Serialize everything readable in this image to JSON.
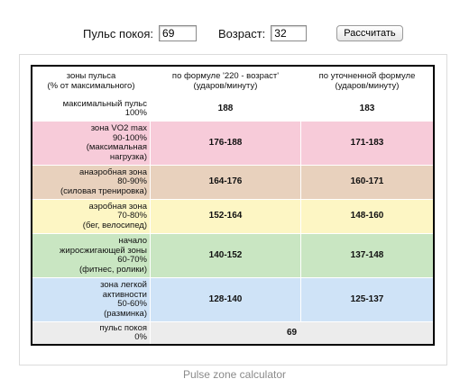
{
  "form": {
    "pulse_label": "Пульс покоя:",
    "pulse_value": "69",
    "age_label": "Возраст:",
    "age_value": "32",
    "calculate_label": "Рассчитать"
  },
  "table": {
    "headers": [
      [
        "зоны пульса",
        "(% от максимального)"
      ],
      [
        "по формуле '220 - возраст'",
        "(ударов/минуту)"
      ],
      [
        "по уточненной формуле",
        "(ударов/минуту)"
      ]
    ],
    "rows": [
      {
        "zone": [
          "максимальный пульс",
          "100%"
        ],
        "formula": "188",
        "refined": "183",
        "color": "#ffffff"
      },
      {
        "zone": [
          "зона VO2 max",
          "90-100%",
          "(максимальная",
          "нагрузка)"
        ],
        "formula": "176-188",
        "refined": "171-183",
        "color": "#f7cbd9"
      },
      {
        "zone": [
          "анаэробная зона",
          "80-90%",
          "(силовая тренировка)"
        ],
        "formula": "164-176",
        "refined": "160-171",
        "color": "#e8d1bd"
      },
      {
        "zone": [
          "аэробная зона",
          "70-80%",
          "(бег, велосипед)"
        ],
        "formula": "152-164",
        "refined": "148-160",
        "color": "#fdf6c4"
      },
      {
        "zone": [
          "начало",
          "жиросжигающей зоны",
          "60-70%",
          "(фитнес, ролики)"
        ],
        "formula": "140-152",
        "refined": "137-148",
        "color": "#c9e6c2"
      },
      {
        "zone": [
          "зона легкой",
          "активности",
          "50-60%",
          "(разминка)"
        ],
        "formula": "128-140",
        "refined": "125-137",
        "color": "#cfe3f7"
      }
    ],
    "resting": {
      "zone": [
        "пульс покоя",
        "0%"
      ],
      "value": "69",
      "color": "#ececec"
    }
  },
  "caption": "Pulse zone calculator"
}
